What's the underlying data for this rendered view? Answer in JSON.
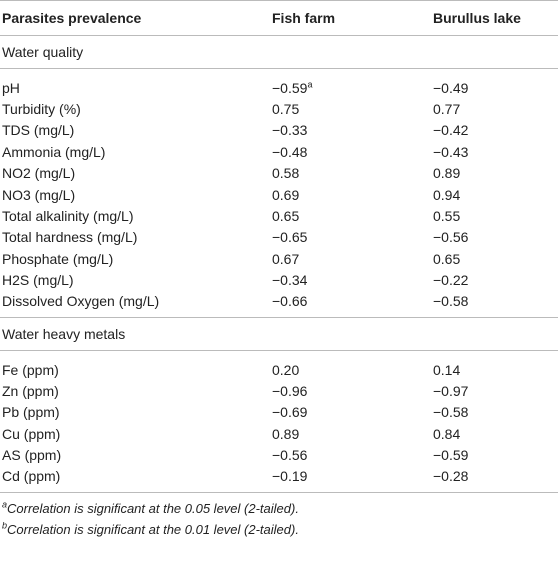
{
  "header": {
    "col1": "Parasites prevalence",
    "col2": "Fish farm",
    "col3": "Burullus lake"
  },
  "sections": [
    {
      "title": "Water quality",
      "rows": [
        {
          "name": "pH",
          "fish": "−0.59",
          "fish_sup": "a",
          "lake": "−0.49"
        },
        {
          "name": "Turbidity (%)",
          "fish": "0.75",
          "lake": "0.77"
        },
        {
          "name": "TDS (mg/L)",
          "fish": "−0.33",
          "lake": "−0.42"
        },
        {
          "name": "Ammonia (mg/L)",
          "fish": "−0.48",
          "lake": "−0.43"
        },
        {
          "name": "NO2 (mg/L)",
          "fish": "0.58",
          "lake": "0.89"
        },
        {
          "name": "NO3 (mg/L)",
          "fish": "0.69",
          "lake": "0.94"
        },
        {
          "name": "Total alkalinity (mg/L)",
          "fish": "0.65",
          "lake": "0.55"
        },
        {
          "name": "Total hardness (mg/L)",
          "fish": "−0.65",
          "lake": "−0.56"
        },
        {
          "name": "Phosphate (mg/L)",
          "fish": "0.67",
          "lake": "0.65"
        },
        {
          "name": "H2S (mg/L)",
          "fish": "−0.34",
          "lake": "−0.22"
        },
        {
          "name": "Dissolved Oxygen (mg/L)",
          "fish": "−0.66",
          "lake": "−0.58"
        }
      ]
    },
    {
      "title": "Water heavy metals",
      "rows": [
        {
          "name": "Fe (ppm)",
          "fish": "0.20",
          "lake": "0.14"
        },
        {
          "name": "Zn (ppm)",
          "fish": "−0.96",
          "lake": "−0.97"
        },
        {
          "name": "Pb (ppm)",
          "fish": "−0.69",
          "lake": "−0.58"
        },
        {
          "name": "Cu (ppm)",
          "fish": "0.89",
          "lake": "0.84"
        },
        {
          "name": "AS (ppm)",
          "fish": "−0.56",
          "lake": "−0.59"
        },
        {
          "name": "Cd (ppm)",
          "fish": "−0.19",
          "lake": "−0.28"
        }
      ]
    }
  ],
  "footnotes": [
    {
      "mark": "a",
      "text": "Correlation is significant at the 0.05 level (2-tailed)."
    },
    {
      "mark": "b",
      "text": "Correlation is significant at the 0.01 level (2-tailed)."
    }
  ]
}
